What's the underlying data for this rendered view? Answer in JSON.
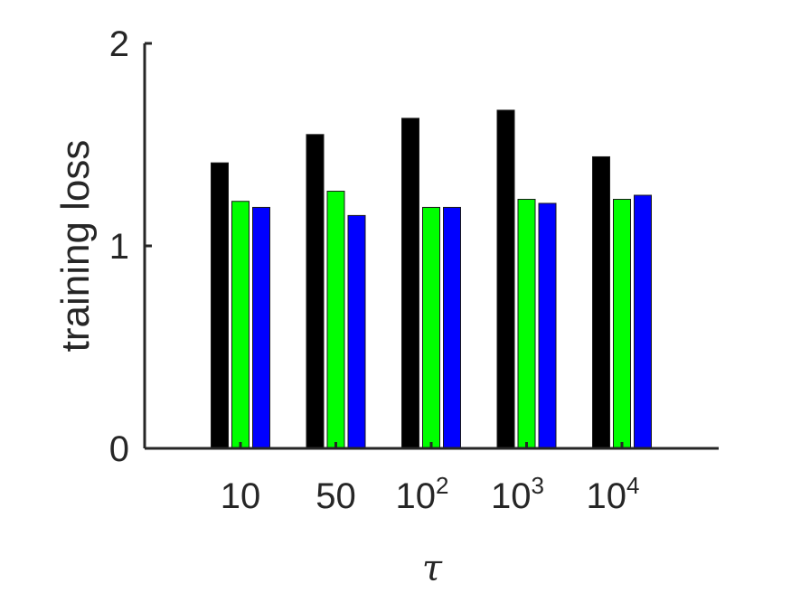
{
  "chart_data": {
    "type": "bar",
    "xlabel": "τ",
    "ylabel": "training loss",
    "ylim": [
      0,
      2
    ],
    "yticks": [
      0,
      1,
      2
    ],
    "grid": false,
    "categories": [
      {
        "base": "10",
        "exp": ""
      },
      {
        "base": "50",
        "exp": ""
      },
      {
        "base": "10",
        "exp": "2"
      },
      {
        "base": "10",
        "exp": "3"
      },
      {
        "base": "10",
        "exp": "4"
      }
    ],
    "series": [
      {
        "color": "#000000",
        "values": [
          1.41,
          1.55,
          1.63,
          1.67,
          1.44
        ]
      },
      {
        "color": "#00ff00",
        "values": [
          1.22,
          1.27,
          1.19,
          1.23,
          1.23
        ]
      },
      {
        "color": "#0000ff",
        "values": [
          1.19,
          1.15,
          1.19,
          1.21,
          1.25
        ]
      }
    ]
  }
}
